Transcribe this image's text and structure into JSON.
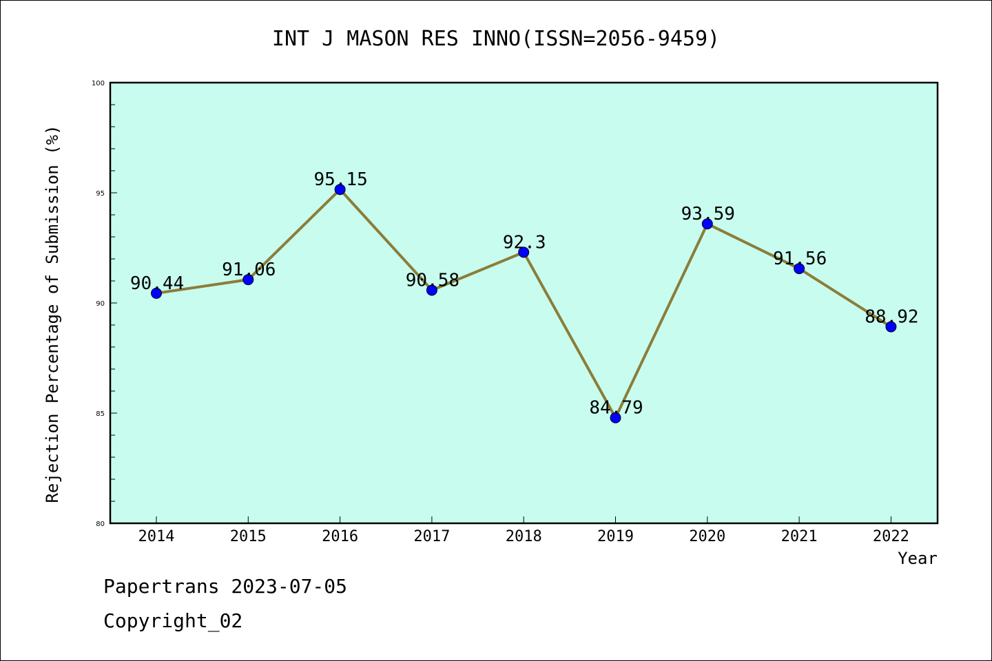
{
  "chart_data": {
    "type": "line",
    "title": "INT J MASON RES INNO(ISSN=2056-9459)",
    "xlabel": "Year",
    "ylabel": "Rejection Percentage of Submission (%)",
    "categories": [
      "2014",
      "2015",
      "2016",
      "2017",
      "2018",
      "2019",
      "2020",
      "2021",
      "2022"
    ],
    "values": [
      90.44,
      91.06,
      95.15,
      90.58,
      92.3,
      84.79,
      93.59,
      91.56,
      88.92
    ],
    "data_labels": [
      "90.44",
      "91.06",
      "95.15",
      "90.58",
      "92.3",
      "84.79",
      "93.59",
      "91.56",
      "88.92"
    ],
    "ylim": [
      80,
      100
    ],
    "yticks": [
      "80",
      "85",
      "90",
      "95",
      "100"
    ],
    "grid": false,
    "legend": "none",
    "colors": {
      "plot_background": "#c8fcee",
      "line": "#8b7d3a",
      "marker": "#0000ff"
    }
  },
  "footer": {
    "line1": "Papertrans 2023-07-05",
    "line2": "Copyright_02"
  }
}
